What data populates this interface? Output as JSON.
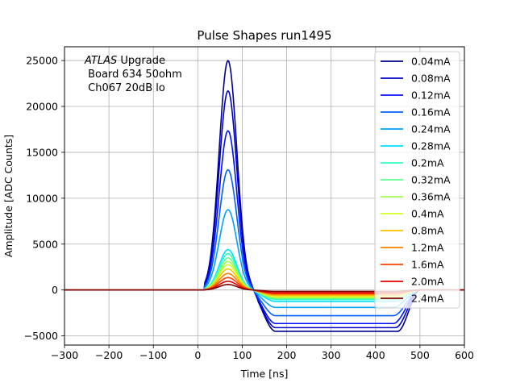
{
  "chart_data": {
    "type": "line",
    "title": "Pulse Shapes run1495",
    "xlabel": "Time [ns]",
    "ylabel": "Amplitude [ADC Counts]",
    "xlim": [
      -300,
      600
    ],
    "ylim": [
      -6000,
      26500
    ],
    "xticks": [
      -300,
      -200,
      -100,
      0,
      100,
      200,
      300,
      400,
      500,
      600
    ],
    "xtick_labels": [
      "−300",
      "−200",
      "−100",
      "0",
      "100",
      "200",
      "300",
      "400",
      "500",
      "600"
    ],
    "yticks": [
      -5000,
      0,
      5000,
      10000,
      15000,
      20000,
      25000
    ],
    "ytick_labels": [
      "−5000",
      "0",
      "5000",
      "10000",
      "15000",
      "20000",
      "25000"
    ],
    "grid": true,
    "legend_position": "upper-right",
    "annotation": {
      "italic": "ATLAS",
      "rest": " Upgrade",
      "line2": " Board 634 50ohm",
      "line3": " Ch067 20dB lo"
    },
    "series": [
      {
        "name": "0.04mA",
        "color": "#00008f",
        "peak": 25000,
        "saturated": true,
        "undershoot": -4500,
        "recover_end": 450
      },
      {
        "name": "0.08mA",
        "color": "#0000c8",
        "peak": 21700,
        "saturated": false,
        "undershoot": -4100,
        "recover_end": 445
      },
      {
        "name": "0.12mA",
        "color": "#0010ff",
        "peak": 17350,
        "saturated": false,
        "undershoot": -3650,
        "recover_end": 440
      },
      {
        "name": "0.16mA",
        "color": "#0060ff",
        "peak": 13100,
        "saturated": false,
        "undershoot": -2800,
        "recover_end": 440
      },
      {
        "name": "0.24mA",
        "color": "#00a0ff",
        "peak": 8750,
        "saturated": false,
        "undershoot": -1900,
        "recover_end": 440
      },
      {
        "name": "0.28mA",
        "color": "#00e0ff",
        "peak": 4400,
        "saturated": false,
        "undershoot": -1250,
        "recover_end": 440
      },
      {
        "name": "0.2mA",
        "color": "#30ffc8",
        "peak": 3950,
        "saturated": false,
        "undershoot": -1050,
        "recover_end": 440
      },
      {
        "name": "0.32mA",
        "color": "#60ff90",
        "peak": 3500,
        "saturated": false,
        "undershoot": -950,
        "recover_end": 440
      },
      {
        "name": "0.36mA",
        "color": "#a0ff50",
        "peak": 3100,
        "saturated": false,
        "undershoot": -850,
        "recover_end": 440
      },
      {
        "name": "0.4mA",
        "color": "#d0ff20",
        "peak": 2750,
        "saturated": false,
        "undershoot": -750,
        "recover_end": 440
      },
      {
        "name": "0.8mA",
        "color": "#ffc000",
        "peak": 2300,
        "saturated": false,
        "undershoot": -600,
        "recover_end": 440
      },
      {
        "name": "1.2mA",
        "color": "#ff8000",
        "peak": 1800,
        "saturated": false,
        "undershoot": -500,
        "recover_end": 440
      },
      {
        "name": "1.6mA",
        "color": "#ff4000",
        "peak": 1350,
        "saturated": false,
        "undershoot": -400,
        "recover_end": 440
      },
      {
        "name": "2.0mA",
        "color": "#e00000",
        "peak": 950,
        "saturated": false,
        "undershoot": -300,
        "recover_end": 440
      },
      {
        "name": "2.4mA",
        "color": "#800000",
        "peak": 600,
        "saturated": false,
        "undershoot": -150,
        "recover_end": 440
      }
    ]
  }
}
